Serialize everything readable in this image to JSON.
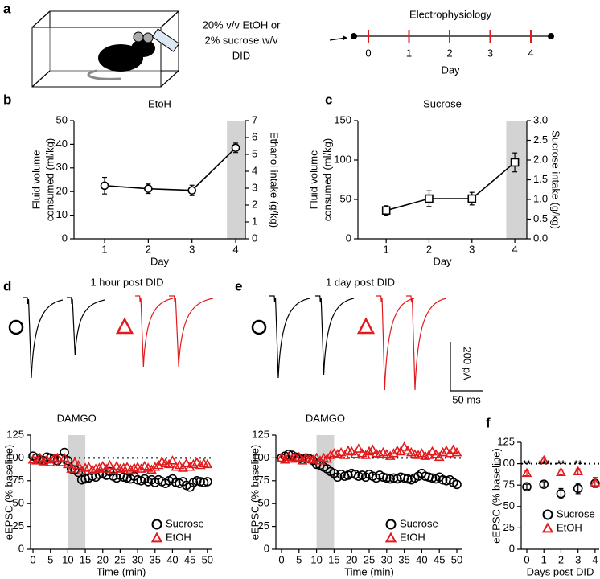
{
  "schematic": {
    "panel": "a",
    "condition_lines": [
      "20% v/v EtOH or",
      "2% sucrose w/v",
      "DID"
    ],
    "timeline_title": "Electrophysiology",
    "timeline_days": [
      0,
      1,
      2,
      3,
      4
    ],
    "timeline_label": "Day"
  },
  "traces": [
    {
      "panel": "d",
      "label": "1 hour post DID"
    },
    {
      "panel": "e",
      "label": "1 day post DID",
      "scale_y": "200 pA",
      "scale_x": "50 ms"
    }
  ],
  "chart_data": [
    {
      "panel": "b",
      "type": "line",
      "title": "EtoH",
      "xlabel": "Day",
      "ylabel": [
        "Fluid volume",
        "consumed (ml/kg)"
      ],
      "y2label": "Ethanol intake (g/kg)",
      "x": [
        1,
        2,
        3,
        4
      ],
      "series": [
        {
          "name": "EtOH",
          "color": "#000000",
          "marker": "circle",
          "values": [
            22.5,
            21.2,
            20.5,
            38.5
          ],
          "errors": [
            3.5,
            2,
            2.2,
            2
          ]
        }
      ],
      "xlim": [
        0.3,
        4.22
      ],
      "xticks": [
        1,
        2,
        3,
        4
      ],
      "ylim": [
        0,
        50
      ],
      "yticks": [
        0,
        10,
        20,
        30,
        40,
        50
      ],
      "y2lim": [
        0,
        7
      ],
      "y2ticks": [
        0,
        1,
        2,
        3,
        4,
        5,
        6,
        7
      ],
      "shade": {
        "x": [
          3.8,
          4.22
        ]
      }
    },
    {
      "panel": "c",
      "type": "line",
      "title": "Sucrose",
      "xlabel": "Day",
      "ylabel": [
        "Fluid volume",
        "consumed (ml/kg)"
      ],
      "y2label": "Sucrose intake (g/kg)",
      "x": [
        1,
        2,
        3,
        4
      ],
      "series": [
        {
          "name": "Sucrose",
          "color": "#000000",
          "marker": "square",
          "values": [
            36,
            51,
            51,
            97
          ],
          "errors": [
            6,
            10,
            8,
            12
          ]
        }
      ],
      "xlim": [
        0.34,
        4.28
      ],
      "xticks": [
        1,
        2,
        3,
        4
      ],
      "ylim": [
        0,
        150
      ],
      "yticks": [
        0,
        50,
        100,
        150
      ],
      "y2lim": [
        0,
        3
      ],
      "y2ticks": [
        {
          "value": 0,
          "label": "0.0"
        },
        0.5,
        {
          "value": 1,
          "label": "1.0"
        },
        1.5,
        {
          "value": 2,
          "label": "2.0"
        },
        2.5,
        {
          "value": 3,
          "label": "3.0"
        }
      ],
      "shade": {
        "x": [
          3.8,
          4.28
        ]
      }
    },
    {
      "type": "scatter",
      "xlabel": "Time (min)",
      "ylabel": [
        "eEPSC (% baseline)"
      ],
      "x": [
        0,
        1,
        2,
        3,
        4,
        5,
        6,
        7,
        8,
        9,
        10,
        11,
        12,
        13,
        14,
        15,
        16,
        17,
        18,
        19,
        20,
        21,
        22,
        23,
        24,
        25,
        26,
        27,
        28,
        29,
        30,
        31,
        32,
        33,
        34,
        35,
        36,
        37,
        38,
        39,
        40,
        41,
        42,
        43,
        44,
        45,
        46,
        47,
        48,
        49,
        50
      ],
      "series": [
        {
          "name": "Sucrose",
          "color": "#000000",
          "marker": "circle",
          "values": [
            102,
            100,
            98,
            97,
            101,
            100,
            99,
            97,
            100,
            106,
            97,
            88,
            87,
            84,
            76,
            77,
            78,
            80,
            79,
            82,
            83,
            81,
            85,
            80,
            78,
            81,
            79,
            78,
            77,
            80,
            76,
            75,
            77,
            74,
            76,
            73,
            76,
            74,
            72,
            75,
            77,
            73,
            72,
            74,
            70,
            68,
            73,
            75,
            74,
            73,
            74
          ]
        },
        {
          "name": "EtOH",
          "color": "#e31a1c",
          "marker": "triangle",
          "values": [
            98,
            97,
            100,
            96,
            98,
            95,
            99,
            100,
            95,
            100,
            93,
            88,
            95,
            92,
            86,
            89,
            90,
            87,
            88,
            89,
            91,
            88,
            92,
            87,
            91,
            88,
            89,
            90,
            87,
            89,
            90,
            88,
            91,
            89,
            87,
            90,
            92,
            96,
            94,
            93,
            97,
            90,
            92,
            89,
            94,
            90,
            93,
            95,
            92,
            94,
            93
          ]
        }
      ],
      "xlim": [
        -0.7,
        51.2
      ],
      "xticks": [
        0,
        5,
        10,
        15,
        20,
        25,
        30,
        35,
        40,
        45,
        50
      ],
      "ylim": [
        0,
        125
      ],
      "yticks": [
        0,
        25,
        50,
        75,
        100,
        125
      ],
      "shade": {
        "x": [
          10,
          15
        ],
        "label": "DAMGO"
      },
      "reference_line": 100,
      "legend": "lower right"
    },
    {
      "type": "scatter",
      "xlabel": "Time (min)",
      "ylabel": [
        "eEPSC (% baseline)"
      ],
      "x": [
        0,
        1,
        2,
        3,
        4,
        5,
        6,
        7,
        8,
        9,
        10,
        11,
        12,
        13,
        14,
        15,
        16,
        17,
        18,
        19,
        20,
        21,
        22,
        23,
        24,
        25,
        26,
        27,
        28,
        29,
        30,
        31,
        32,
        33,
        34,
        35,
        36,
        37,
        38,
        39,
        40,
        41,
        42,
        43,
        44,
        45,
        46,
        47,
        48,
        49,
        50
      ],
      "series": [
        {
          "name": "Sucrose",
          "color": "#000000",
          "marker": "circle",
          "values": [
            100,
            102,
            104,
            103,
            101,
            100,
            98,
            100,
            99,
            97,
            93,
            92,
            90,
            88,
            85,
            83,
            79,
            82,
            80,
            81,
            83,
            82,
            80,
            81,
            79,
            82,
            80,
            78,
            81,
            79,
            78,
            77,
            78,
            77,
            79,
            78,
            77,
            76,
            78,
            80,
            83,
            80,
            79,
            78,
            77,
            79,
            76,
            75,
            76,
            73,
            71
          ]
        },
        {
          "name": "EtOH",
          "color": "#e31a1c",
          "marker": "triangle",
          "values": [
            100,
            98,
            101,
            99,
            100,
            101,
            97,
            100,
            99,
            98,
            100,
            97,
            100,
            99,
            103,
            105,
            104,
            106,
            103,
            108,
            107,
            104,
            110,
            105,
            103,
            107,
            109,
            105,
            104,
            106,
            104,
            102,
            105,
            108,
            107,
            112,
            108,
            106,
            104,
            103,
            105,
            102,
            103,
            107,
            104,
            101,
            106,
            108,
            105,
            109,
            106
          ]
        }
      ],
      "xlim": [
        -1.6,
        51.6
      ],
      "xticks": [
        0,
        5,
        10,
        15,
        20,
        25,
        30,
        35,
        40,
        45,
        50
      ],
      "ylim": [
        0,
        125
      ],
      "yticks": [
        0,
        25,
        50,
        75,
        100,
        125
      ],
      "shade": {
        "x": [
          10,
          15
        ],
        "label": "DAMGO"
      },
      "reference_line": 100,
      "legend": "lower right"
    },
    {
      "panel": "f",
      "type": "scatter",
      "xlabel": "Days post DID",
      "ylabel": [
        "eEPSC (% baseline)"
      ],
      "x": [
        0,
        1,
        2,
        3,
        4
      ],
      "series": [
        {
          "name": "Sucrose",
          "color": "#000000",
          "marker": "circle",
          "values": [
            73,
            76,
            65,
            71,
            77
          ],
          "errors": [
            3,
            3,
            6,
            6,
            4
          ]
        },
        {
          "name": "EtOH",
          "color": "#e31a1c",
          "marker": "triangle",
          "values": [
            89,
            104,
            90,
            91,
            78
          ],
          "errors": [
            3,
            3,
            3,
            3,
            6
          ]
        }
      ],
      "xlim": [
        -0.33,
        4.24
      ],
      "xticks": [
        0,
        1,
        2,
        3,
        4
      ],
      "ylim": [
        0,
        125
      ],
      "yticks": [
        0,
        25,
        50,
        75,
        100,
        125
      ],
      "reference_line": 100,
      "legend": "lower right",
      "annotations": [
        {
          "text": "**",
          "x": 0
        },
        {
          "text": "***",
          "x": 1
        },
        {
          "text": "**",
          "x": 2
        },
        {
          "text": "**",
          "x": 3
        }
      ]
    }
  ]
}
